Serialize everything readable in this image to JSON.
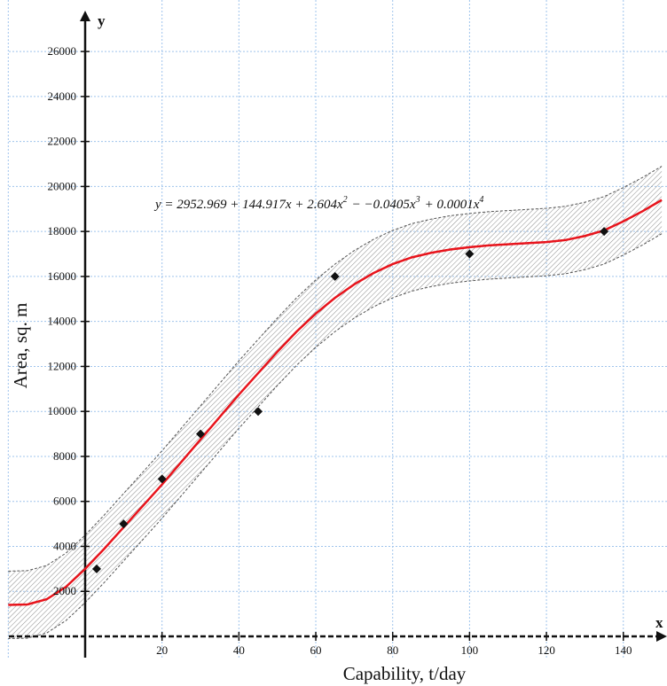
{
  "chart_data": {
    "type": "scatter",
    "xlabel": "Capability, t/day",
    "ylabel": "Area, sq. m",
    "x_axis_letter": "x",
    "y_axis_letter": "y",
    "xlim": [
      -20,
      150
    ],
    "ylim": [
      -1000,
      27500
    ],
    "x_ticks": [
      20,
      40,
      60,
      80,
      100,
      120,
      140
    ],
    "x_tick_labels": [
      "20",
      "40",
      "60",
      "80",
      "100",
      "120",
      "140"
    ],
    "y_ticks": [
      2000,
      4000,
      6000,
      8000,
      10000,
      12000,
      14000,
      16000,
      18000,
      20000,
      22000,
      24000,
      26000
    ],
    "y_tick_labels": [
      "2000",
      "4000",
      "6000",
      "8000",
      "10000",
      "12000",
      "14000",
      "16000",
      "18000",
      "20000",
      "22000",
      "24000",
      "26000"
    ],
    "grid": true,
    "series": [
      {
        "kind": "points",
        "marker": "diamond",
        "color": "#111111",
        "points": [
          {
            "x": 3,
            "y": 3000
          },
          {
            "x": 10,
            "y": 5000
          },
          {
            "x": 20,
            "y": 7000
          },
          {
            "x": 30,
            "y": 9000
          },
          {
            "x": 45,
            "y": 10000
          },
          {
            "x": 65,
            "y": 16000
          },
          {
            "x": 100,
            "y": 17000
          },
          {
            "x": 135,
            "y": 18000
          }
        ]
      },
      {
        "kind": "fitted_curve",
        "color": "#e8141c",
        "points": [
          {
            "x": -20,
            "y": 1400
          },
          {
            "x": -15,
            "y": 1420
          },
          {
            "x": -10,
            "y": 1650
          },
          {
            "x": -5,
            "y": 2200
          },
          {
            "x": 0,
            "y": 3000
          },
          {
            "x": 5,
            "y": 3900
          },
          {
            "x": 10,
            "y": 4850
          },
          {
            "x": 15,
            "y": 5800
          },
          {
            "x": 20,
            "y": 6750
          },
          {
            "x": 25,
            "y": 7750
          },
          {
            "x": 30,
            "y": 8750
          },
          {
            "x": 35,
            "y": 9750
          },
          {
            "x": 40,
            "y": 10750
          },
          {
            "x": 45,
            "y": 11700
          },
          {
            "x": 50,
            "y": 12650
          },
          {
            "x": 55,
            "y": 13550
          },
          {
            "x": 60,
            "y": 14350
          },
          {
            "x": 65,
            "y": 15050
          },
          {
            "x": 70,
            "y": 15650
          },
          {
            "x": 75,
            "y": 16150
          },
          {
            "x": 80,
            "y": 16550
          },
          {
            "x": 85,
            "y": 16850
          },
          {
            "x": 90,
            "y": 17050
          },
          {
            "x": 95,
            "y": 17200
          },
          {
            "x": 100,
            "y": 17300
          },
          {
            "x": 105,
            "y": 17380
          },
          {
            "x": 110,
            "y": 17430
          },
          {
            "x": 115,
            "y": 17480
          },
          {
            "x": 120,
            "y": 17530
          },
          {
            "x": 125,
            "y": 17620
          },
          {
            "x": 130,
            "y": 17800
          },
          {
            "x": 135,
            "y": 18050
          },
          {
            "x": 140,
            "y": 18450
          },
          {
            "x": 145,
            "y": 18900
          },
          {
            "x": 150,
            "y": 19400
          }
        ]
      },
      {
        "kind": "confidence_band",
        "color": "#555555",
        "half_width": 1500
      }
    ],
    "equation": {
      "lead": "y",
      "parts": [
        {
          "text": " = 2952.969 + 144.917",
          "sup": ""
        },
        {
          "text": "x",
          "sup": ""
        },
        {
          "text": " + 2.604",
          "sup": ""
        },
        {
          "text": "x",
          "sup": "2"
        },
        {
          "text": " − −0.0405",
          "sup": ""
        },
        {
          "text": "x",
          "sup": "3"
        },
        {
          "text": " + 0.0001",
          "sup": ""
        },
        {
          "text": "x",
          "sup": "4"
        }
      ]
    }
  }
}
